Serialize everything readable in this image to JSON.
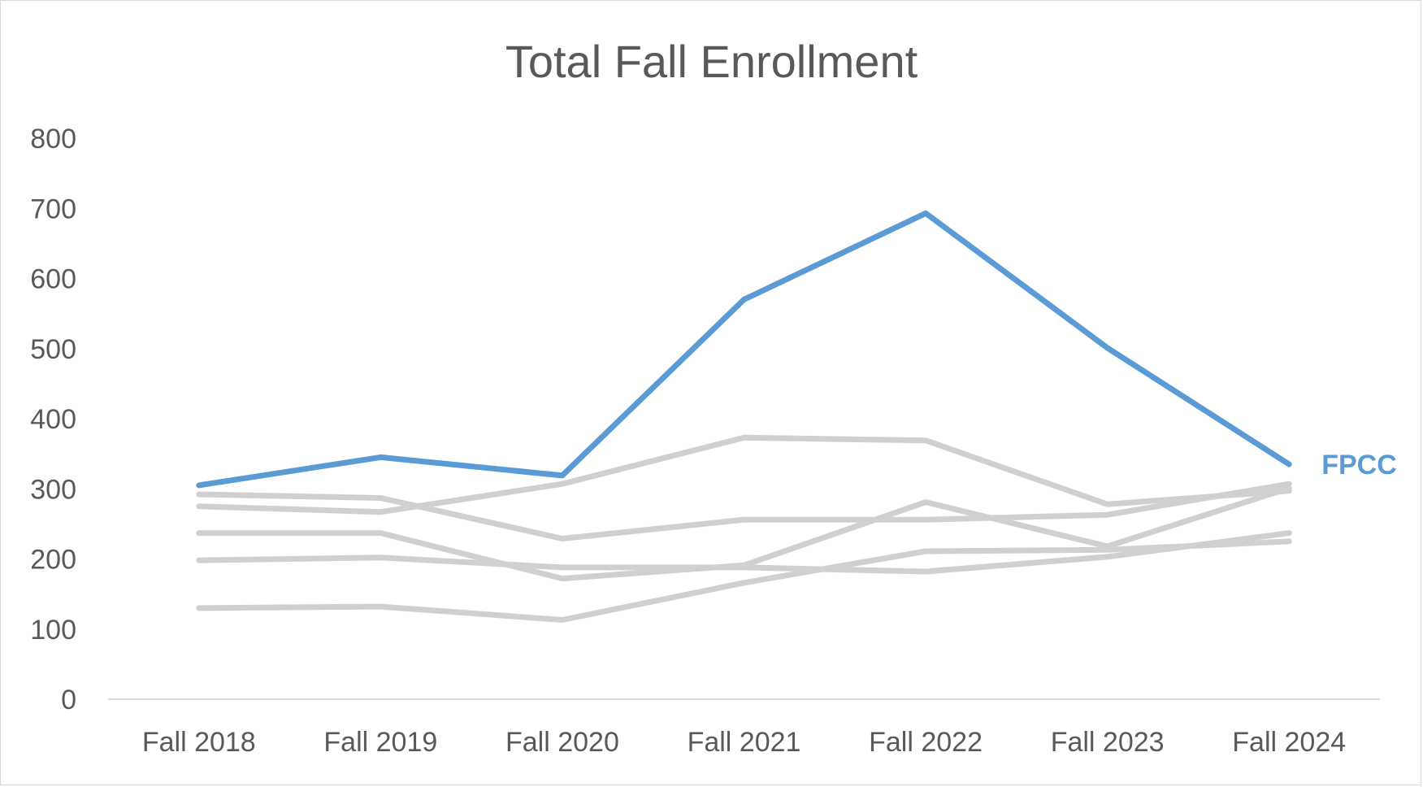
{
  "chart_data": {
    "type": "line",
    "title": "Total Fall Enrollment",
    "xlabel": "",
    "ylabel": "",
    "categories": [
      "Fall 2018",
      "Fall 2019",
      "Fall 2020",
      "Fall 2021",
      "Fall 2022",
      "Fall 2023",
      "Fall 2024"
    ],
    "ylim": [
      0,
      800
    ],
    "yticks": [
      0,
      100,
      200,
      300,
      400,
      500,
      600,
      700,
      800
    ],
    "grid": false,
    "legend": "none",
    "highlight_color": "#5b9bd5",
    "muted_color": "#d0d0d0",
    "axis_color": "#d9d9d9",
    "series": [
      {
        "values": [
          275,
          267,
          307,
          373,
          369,
          278,
          297
        ],
        "highlighted": false
      },
      {
        "values": [
          292,
          287,
          229,
          256,
          256,
          263,
          307
        ],
        "highlighted": false
      },
      {
        "values": [
          237,
          237,
          172,
          191,
          281,
          218,
          301
        ],
        "highlighted": false
      },
      {
        "values": [
          198,
          202,
          188,
          188,
          182,
          203,
          237
        ],
        "highlighted": false
      },
      {
        "values": [
          130,
          132,
          113,
          166,
          211,
          213,
          225
        ],
        "highlighted": false
      },
      {
        "name": "FPCC",
        "values": [
          305,
          345,
          319,
          570,
          693,
          501,
          335
        ],
        "highlighted": true
      }
    ]
  }
}
